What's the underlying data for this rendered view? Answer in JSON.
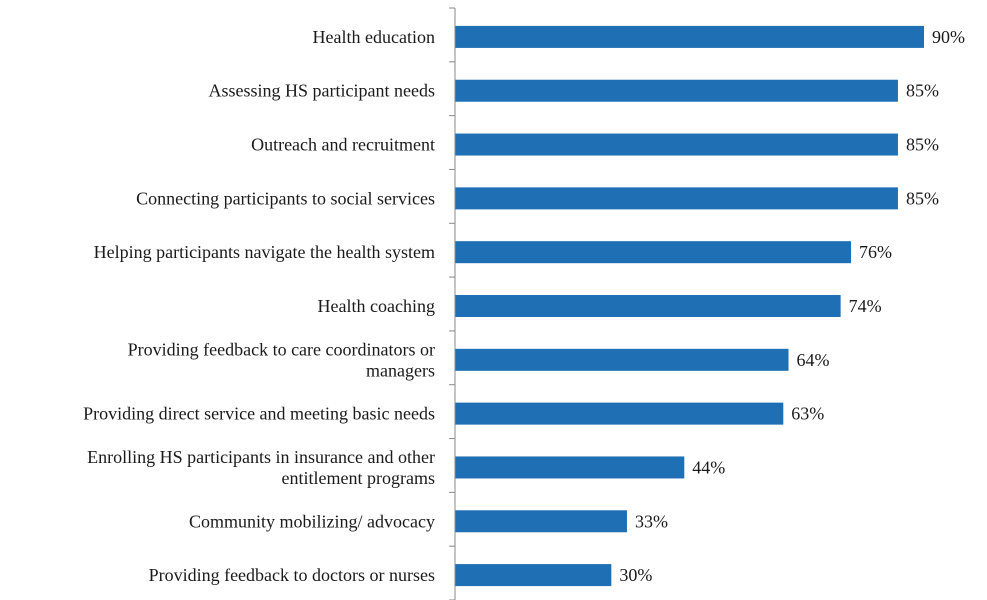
{
  "chart_data": {
    "type": "bar",
    "orientation": "horizontal",
    "categories": [
      [
        "Health education"
      ],
      [
        "Assessing HS participant needs"
      ],
      [
        "Outreach and recruitment"
      ],
      [
        "Connecting participants to social services"
      ],
      [
        "Helping participants navigate the health system"
      ],
      [
        "Health coaching"
      ],
      [
        "Providing feedback to care coordinators or",
        "managers"
      ],
      [
        "Providing direct service and meeting basic needs"
      ],
      [
        "Enrolling HS participants in insurance and other",
        "entitlement programs"
      ],
      [
        "Community mobilizing/ advocacy"
      ],
      [
        "Providing feedback to doctors or nurses"
      ]
    ],
    "values": [
      90,
      85,
      85,
      85,
      76,
      74,
      64,
      63,
      44,
      33,
      30
    ],
    "value_labels": [
      "90%",
      "85%",
      "85%",
      "85%",
      "76%",
      "74%",
      "64%",
      "63%",
      "44%",
      "33%",
      "30%"
    ],
    "bar_color": "#1F6FB4",
    "axis_color": "#888888",
    "xlim": [
      0,
      100
    ],
    "grid": false,
    "legend": "none"
  }
}
